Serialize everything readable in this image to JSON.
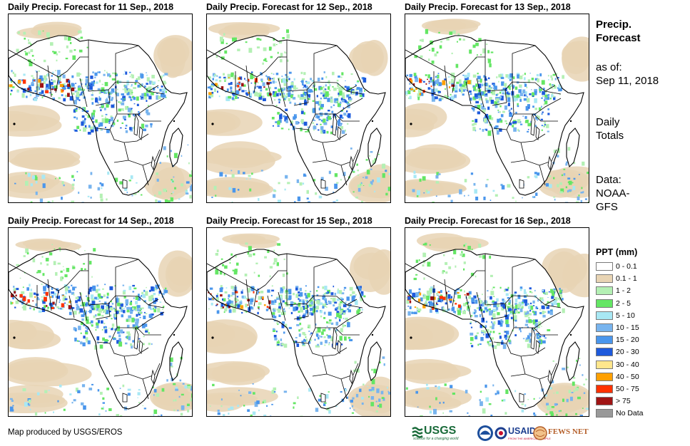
{
  "panels": [
    {
      "title": "Daily Precip. Forecast for 11 Sep., 2018",
      "day": "11"
    },
    {
      "title": "Daily Precip. Forecast for 12 Sep., 2018",
      "day": "12"
    },
    {
      "title": "Daily Precip. Forecast for 13 Sep., 2018",
      "day": "13"
    },
    {
      "title": "Daily Precip. Forecast for 14 Sep., 2018",
      "day": "14"
    },
    {
      "title": "Daily Precip. Forecast for 15 Sep., 2018",
      "day": "15"
    },
    {
      "title": "Daily Precip. Forecast for 16 Sep., 2018",
      "day": "16"
    }
  ],
  "side": {
    "heading_line1": "Precip.",
    "heading_line2": "Forecast",
    "asof_line1": "as of:",
    "asof_line2": "Sep 11, 2018",
    "totals_line1": "Daily",
    "totals_line2": "Totals",
    "data_line1": "Data:",
    "data_line2": "NOAA-",
    "data_line3": "GFS"
  },
  "legend": {
    "title": "PPT (mm)",
    "items": [
      {
        "label": "0 - 0.1",
        "color": "#ffffff"
      },
      {
        "label": "0.1 - 1",
        "color": "#e8d4b4"
      },
      {
        "label": "1 - 2",
        "color": "#b4f0b4"
      },
      {
        "label": "2 - 5",
        "color": "#64e664"
      },
      {
        "label": "5 - 10",
        "color": "#a8e8f4"
      },
      {
        "label": "10 - 15",
        "color": "#78b4ee"
      },
      {
        "label": "15 - 20",
        "color": "#4a96ec"
      },
      {
        "label": "20 - 30",
        "color": "#1e5adc"
      },
      {
        "label": "30 - 40",
        "color": "#ffe68c"
      },
      {
        "label": "40 - 50",
        "color": "#ffa000"
      },
      {
        "label": "50 - 75",
        "color": "#ff3200"
      },
      {
        "label": "> 75",
        "color": "#a01414"
      },
      {
        "label": "No Data",
        "color": "#999999"
      }
    ]
  },
  "credit": "Map produced by USGS/EROS",
  "logos": {
    "usgs": "USGS",
    "usgs_tagline": "science for a changing world",
    "usaid": "USAID",
    "usaid_tagline": "FROM THE AMERICAN PEOPLE",
    "fews": "FEWS NET"
  }
}
